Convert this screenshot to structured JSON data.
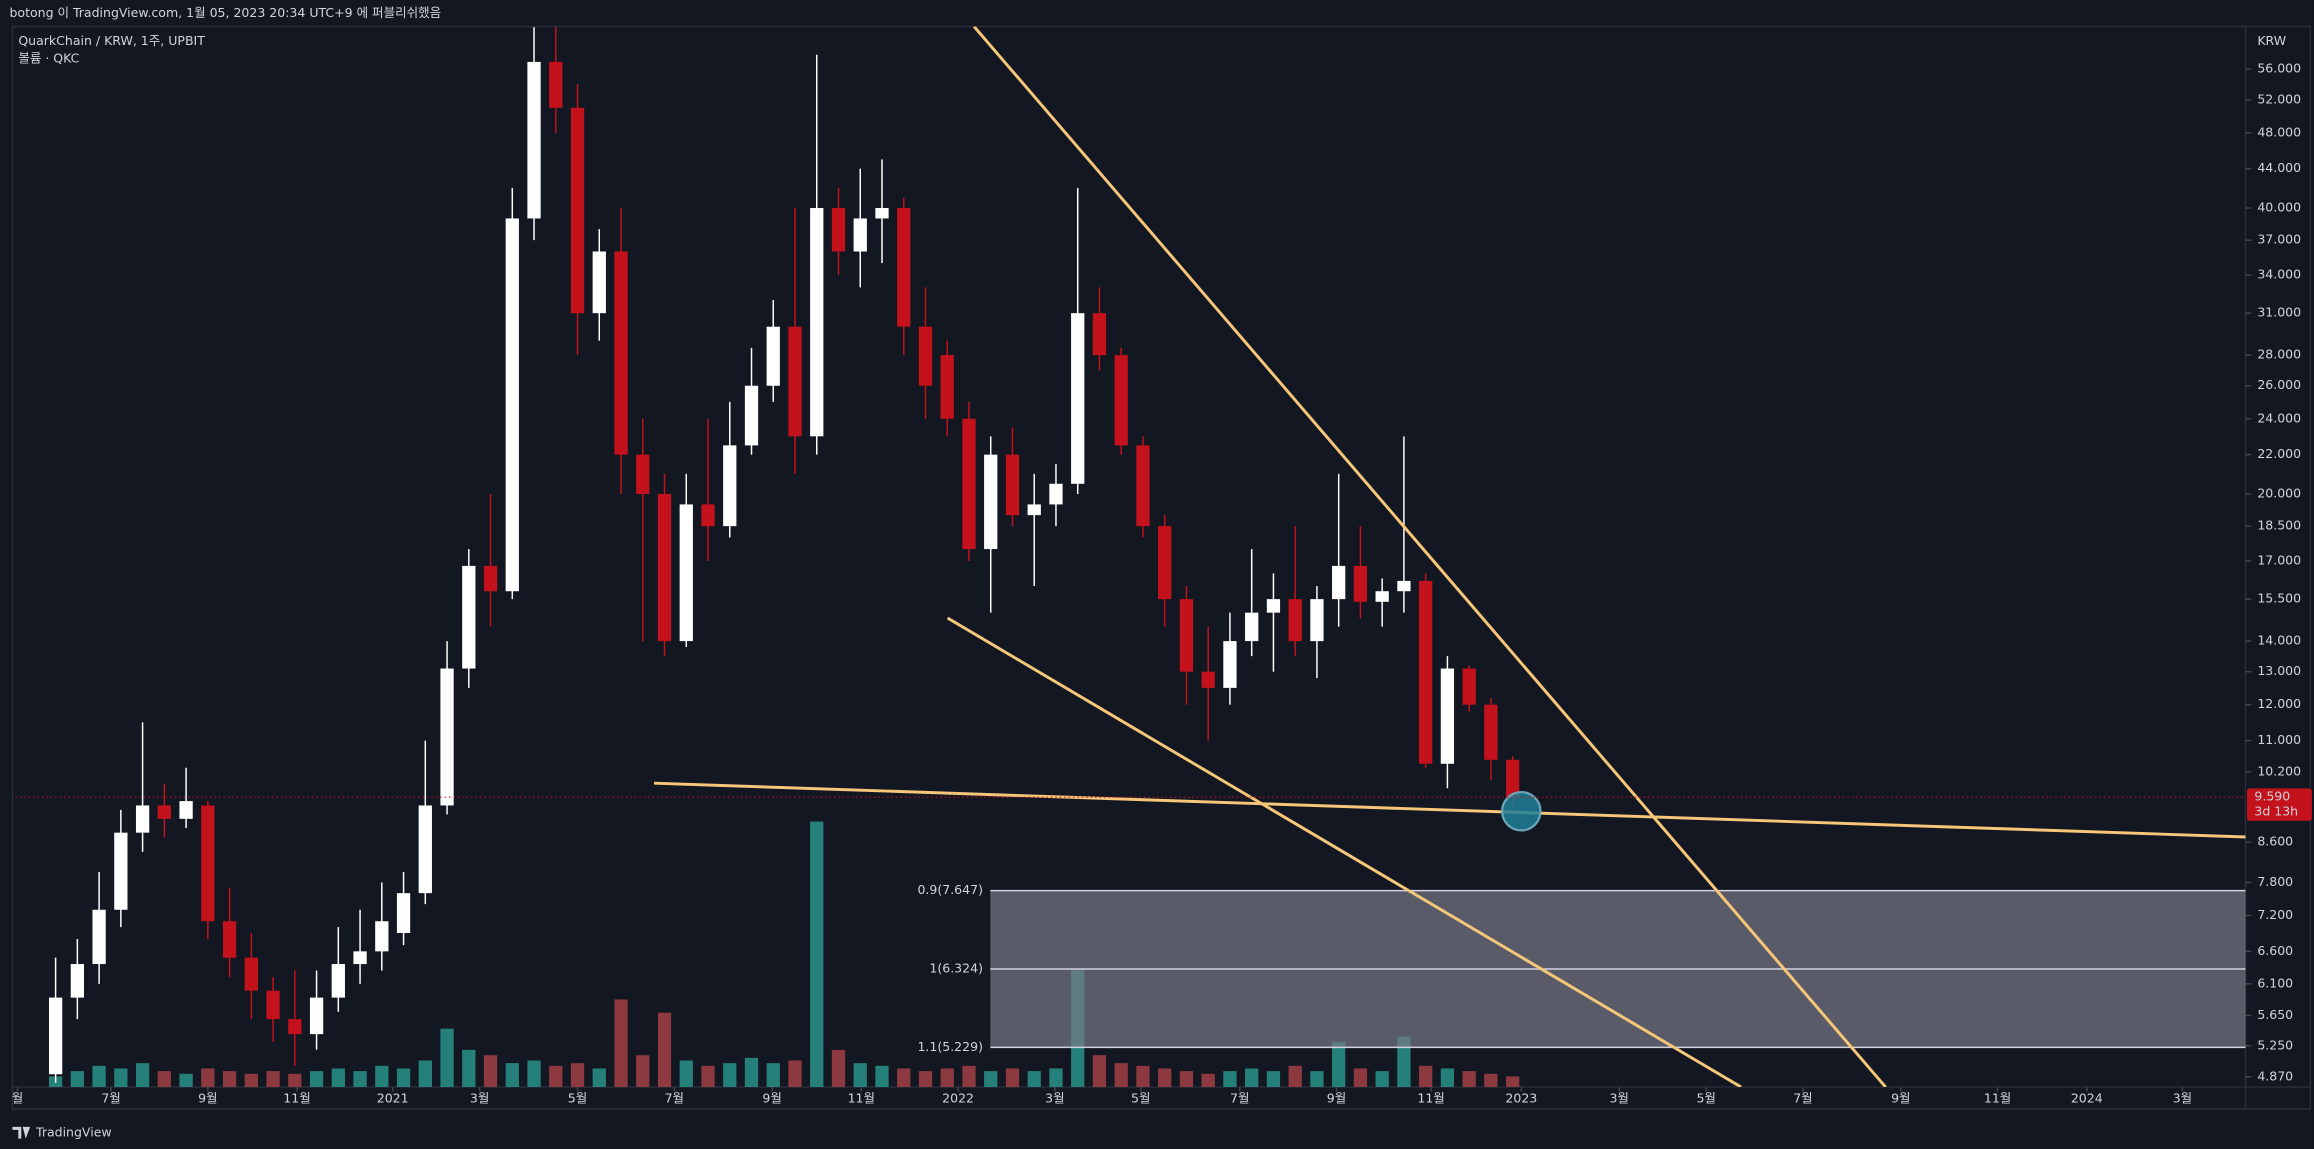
{
  "publish_note": "botong 이 TradingView.com, 1월 05, 2023 20:34 UTC+9 에 퍼블리쉬했음",
  "footer": "TradingView",
  "chart_data": {
    "type": "candlestick",
    "title": "QuarkChain / KRW, 1주, UPBIT",
    "subtitle": "볼륨 · QKC",
    "y_unit": "KRW",
    "log_scale": true,
    "grid": false,
    "up_color": "#ffffff",
    "down_color": "#c4121c",
    "volume_up_color": "#26807a",
    "volume_down_color": "#8c3a40",
    "ylim": [
      4750,
      62100
    ],
    "yticks": [
      {
        "value": 56000,
        "label": "56.000"
      },
      {
        "value": 52000,
        "label": "52.000"
      },
      {
        "value": 48000,
        "label": "48.000"
      },
      {
        "value": 44000,
        "label": "44.000"
      },
      {
        "value": 40000,
        "label": "40.000"
      },
      {
        "value": 37000,
        "label": "37.000"
      },
      {
        "value": 34000,
        "label": "34.000"
      },
      {
        "value": 31000,
        "label": "31.000"
      },
      {
        "value": 28000,
        "label": "28.000"
      },
      {
        "value": 26000,
        "label": "26.000"
      },
      {
        "value": 24000,
        "label": "24.000"
      },
      {
        "value": 22000,
        "label": "22.000"
      },
      {
        "value": 20000,
        "label": "20.000"
      },
      {
        "value": 18500,
        "label": "18.500"
      },
      {
        "value": 17000,
        "label": "17.000"
      },
      {
        "value": 15500,
        "label": "15.500"
      },
      {
        "value": 14000,
        "label": "14.000"
      },
      {
        "value": 13000,
        "label": "13.000"
      },
      {
        "value": 12000,
        "label": "12.000"
      },
      {
        "value": 11000,
        "label": "11.000"
      },
      {
        "value": 10200,
        "label": "10.200"
      },
      {
        "value": 8600,
        "label": "8.600"
      },
      {
        "value": 7800,
        "label": "7.800"
      },
      {
        "value": 7200,
        "label": "7.200"
      },
      {
        "value": 6600,
        "label": "6.600"
      },
      {
        "value": 6100,
        "label": "6.100"
      },
      {
        "value": 5650,
        "label": "5.650"
      },
      {
        "value": 5250,
        "label": "5.250"
      },
      {
        "value": 4870,
        "label": "4.870"
      }
    ],
    "xlim": [
      -34.7,
      170.4
    ],
    "xticks": [
      {
        "value": -34.5,
        "label": "월"
      },
      {
        "value": -25.9,
        "label": "7월"
      },
      {
        "value": -17,
        "label": "9월"
      },
      {
        "value": -8.8,
        "label": "11월"
      },
      {
        "value": 0,
        "label": "2021"
      },
      {
        "value": 8,
        "label": "3월"
      },
      {
        "value": 17,
        "label": "5월"
      },
      {
        "value": 25.9,
        "label": "7월"
      },
      {
        "value": 34.9,
        "label": "9월"
      },
      {
        "value": 43.1,
        "label": "11월"
      },
      {
        "value": 52,
        "label": "2022"
      },
      {
        "value": 60.9,
        "label": "3월"
      },
      {
        "value": 68.8,
        "label": "5월"
      },
      {
        "value": 77.9,
        "label": "7월"
      },
      {
        "value": 86.8,
        "label": "9월"
      },
      {
        "value": 95.5,
        "label": "11월"
      },
      {
        "value": 103.8,
        "label": "2023"
      },
      {
        "value": 112.8,
        "label": "3월"
      },
      {
        "value": 120.8,
        "label": "5월"
      },
      {
        "value": 129.7,
        "label": "7월"
      },
      {
        "value": 138.7,
        "label": "9월"
      },
      {
        "value": 147.6,
        "label": "11월"
      },
      {
        "value": 155.8,
        "label": "2024"
      },
      {
        "value": 164.6,
        "label": "3월"
      }
    ],
    "x": [
      -31,
      -29,
      -27,
      -25,
      -23,
      -21,
      -19,
      -17,
      -15,
      -13,
      -11,
      -9,
      -7,
      -5,
      -3,
      -1,
      1,
      3,
      5,
      7,
      9,
      11,
      13,
      15,
      17,
      19,
      21,
      23,
      25,
      27,
      29,
      31,
      33,
      35,
      37,
      39,
      41,
      43,
      45,
      47,
      49,
      51,
      53,
      55,
      57,
      59,
      61,
      63,
      65,
      67,
      69,
      71,
      73,
      75,
      77,
      79,
      81,
      83,
      85,
      87,
      89,
      91,
      93,
      95,
      97,
      99,
      101,
      103
    ],
    "open": [
      4900,
      5900,
      6400,
      7300,
      8800,
      9400,
      9100,
      9400,
      7100,
      6500,
      6000,
      5600,
      5400,
      5900,
      6400,
      6600,
      6900,
      7600,
      9400,
      13100,
      16800,
      15800,
      39000,
      57000,
      51000,
      31000,
      36000,
      22000,
      20000,
      14000,
      19500,
      18500,
      22500,
      26000,
      30000,
      23000,
      40000,
      36000,
      39000,
      40000,
      30000,
      28000,
      24000,
      17500,
      22000,
      19000,
      19500,
      20500,
      31000,
      28000,
      22500,
      18500,
      15500,
      13000,
      12500,
      14000,
      15000,
      15500,
      14000,
      15500,
      16800,
      15400,
      15800,
      16200,
      10400,
      13100,
      12000,
      10500
    ],
    "high": [
      6500,
      6800,
      8000,
      9300,
      11500,
      9900,
      10300,
      9500,
      7700,
      6900,
      6200,
      6300,
      6300,
      7000,
      7300,
      7800,
      8000,
      11000,
      14000,
      17500,
      20000,
      42000,
      62000,
      62000,
      54000,
      38000,
      40000,
      24000,
      21000,
      21000,
      24000,
      25000,
      28500,
      32000,
      40000,
      58000,
      42000,
      44000,
      45000,
      41000,
      33000,
      29000,
      25000,
      23000,
      23500,
      21000,
      21500,
      42000,
      33000,
      28500,
      23000,
      19000,
      16000,
      14500,
      15000,
      17500,
      16500,
      18500,
      16000,
      21000,
      18500,
      16300,
      23000,
      16500,
      13500,
      13200,
      12200,
      10600
    ],
    "low": [
      4800,
      5600,
      6100,
      7000,
      8400,
      8700,
      8900,
      6800,
      6200,
      5600,
      5300,
      5000,
      5200,
      5700,
      6100,
      6300,
      6700,
      7400,
      9200,
      12500,
      14500,
      15500,
      37000,
      48000,
      28000,
      29000,
      20000,
      14000,
      13500,
      13800,
      17000,
      18000,
      22000,
      25000,
      21000,
      22000,
      34000,
      33000,
      35000,
      28000,
      24000,
      23000,
      17000,
      15000,
      18500,
      16000,
      18500,
      20000,
      27000,
      22000,
      18000,
      14500,
      12000,
      11000,
      12000,
      13500,
      13000,
      13500,
      12800,
      14500,
      14800,
      14500,
      15000,
      10300,
      9800,
      11800,
      10000,
      9400
    ],
    "close": [
      5900,
      6400,
      7300,
      8800,
      9400,
      9100,
      9500,
      7100,
      6500,
      6000,
      5600,
      5400,
      5900,
      6400,
      6600,
      7100,
      7600,
      9400,
      13100,
      16800,
      15800,
      39000,
      57000,
      51000,
      31000,
      36000,
      22000,
      20000,
      14000,
      19500,
      18500,
      22500,
      26000,
      30000,
      23000,
      40000,
      36000,
      39000,
      40000,
      30000,
      26000,
      24000,
      17500,
      22000,
      19000,
      19500,
      20500,
      31000,
      28000,
      22500,
      18500,
      15500,
      13000,
      12500,
      14000,
      15000,
      15500,
      14000,
      15500,
      16800,
      15400,
      15800,
      16200,
      10400,
      13100,
      12000,
      10500,
      9590
    ],
    "volume": [
      4,
      6,
      8,
      7,
      9,
      6,
      5,
      7,
      6,
      5,
      6,
      5,
      6,
      7,
      6,
      8,
      7,
      10,
      22,
      14,
      12,
      9,
      10,
      8,
      9,
      7,
      33,
      12,
      28,
      10,
      8,
      9,
      11,
      9,
      10,
      100,
      14,
      9,
      8,
      7,
      6,
      7,
      8,
      6,
      7,
      6,
      7,
      44,
      12,
      9,
      8,
      7,
      6,
      5,
      6,
      7,
      6,
      8,
      6,
      17,
      7,
      6,
      19,
      8,
      7,
      6,
      5,
      4
    ],
    "last_price": {
      "value": 9590,
      "label": "9.590"
    },
    "countdown": "3d 13h",
    "fib_levels": [
      {
        "value": 7647,
        "label": "0.9(7.647)"
      },
      {
        "value": 6324,
        "label": "1(6.324)"
      },
      {
        "value": 5229,
        "label": "1.1(5.229)"
      }
    ]
  }
}
